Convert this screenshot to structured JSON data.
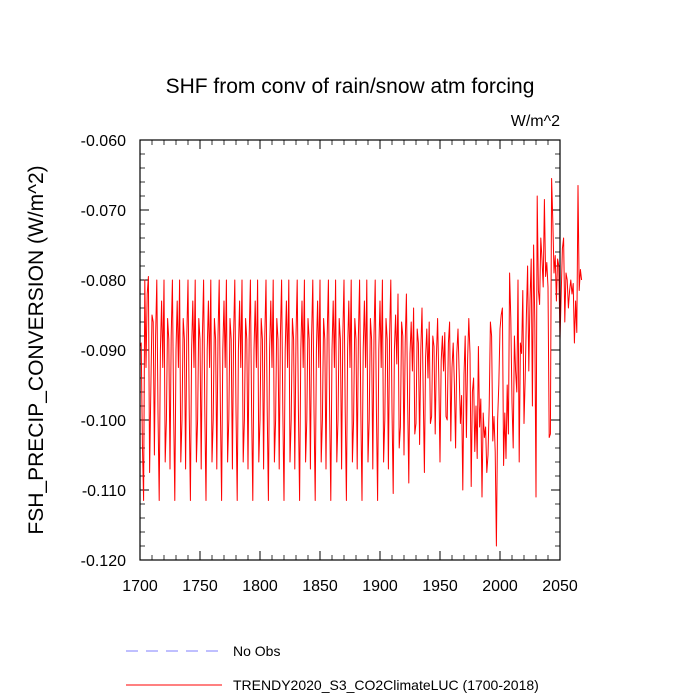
{
  "chart_data": {
    "type": "line",
    "title": "SHF from conv of rain/snow atm forcing",
    "units": "W/m^2",
    "xlabel": "",
    "ylabel": "FSH_PRECIP_CONVERSION  (W/m^2)",
    "xlim": [
      1700,
      2050
    ],
    "ylim": [
      -0.12,
      -0.06
    ],
    "xticks": [
      1700,
      1750,
      1800,
      1850,
      1900,
      1950,
      2000,
      2050
    ],
    "xtick_labels": [
      "1700",
      "1750",
      "1800",
      "1850",
      "1900",
      "1950",
      "2000",
      "2050"
    ],
    "yticks": [
      -0.06,
      -0.07,
      -0.08,
      -0.09,
      -0.1,
      -0.11,
      -0.12
    ],
    "ytick_labels": [
      "-0.060",
      "-0.070",
      "-0.080",
      "-0.090",
      "-0.100",
      "-0.110",
      "-0.120"
    ],
    "grid": false,
    "legend": [
      {
        "label": "No Obs",
        "color": "#7f7fff",
        "dash": "dashed"
      },
      {
        "label": "TRENDY2020_S3_CO2ClimateLUC (1700-2018)",
        "color": "#ff0000",
        "dash": "solid"
      }
    ],
    "series": [
      {
        "name": "TRENDY2020_S3_CO2ClimateLUC (1700-2018)",
        "color": "#ff0000",
        "x_start": 1700,
        "x_step": 1,
        "values": [
          -0.0895,
          -0.089,
          -0.1035,
          -0.1115,
          -0.08,
          -0.0925,
          -0.082,
          -0.0795,
          -0.1075,
          -0.096,
          -0.085,
          -0.086,
          -0.105,
          -0.088,
          -0.08,
          -0.099,
          -0.1115,
          -0.09,
          -0.083,
          -0.0925,
          -0.08,
          -0.106,
          -0.1,
          -0.0855,
          -0.0885,
          -0.107,
          -0.088,
          -0.08,
          -0.0985,
          -0.1115,
          -0.09,
          -0.083,
          -0.0925,
          -0.08,
          -0.106,
          -0.1,
          -0.0855,
          -0.0885,
          -0.107,
          -0.088,
          -0.08,
          -0.0985,
          -0.1115,
          -0.09,
          -0.083,
          -0.0925,
          -0.08,
          -0.106,
          -0.1,
          -0.0855,
          -0.0885,
          -0.107,
          -0.088,
          -0.08,
          -0.0985,
          -0.1115,
          -0.09,
          -0.083,
          -0.0925,
          -0.08,
          -0.106,
          -0.1,
          -0.0855,
          -0.0885,
          -0.107,
          -0.088,
          -0.08,
          -0.0985,
          -0.1115,
          -0.09,
          -0.083,
          -0.0925,
          -0.08,
          -0.106,
          -0.1,
          -0.0855,
          -0.0885,
          -0.107,
          -0.088,
          -0.08,
          -0.0985,
          -0.1115,
          -0.09,
          -0.083,
          -0.0925,
          -0.08,
          -0.106,
          -0.1,
          -0.0855,
          -0.0885,
          -0.107,
          -0.088,
          -0.08,
          -0.0985,
          -0.1115,
          -0.09,
          -0.083,
          -0.0925,
          -0.08,
          -0.106,
          -0.1,
          -0.0855,
          -0.0885,
          -0.107,
          -0.088,
          -0.08,
          -0.0985,
          -0.1115,
          -0.09,
          -0.083,
          -0.0925,
          -0.08,
          -0.106,
          -0.1,
          -0.0855,
          -0.0885,
          -0.107,
          -0.088,
          -0.08,
          -0.0985,
          -0.1115,
          -0.09,
          -0.083,
          -0.0925,
          -0.08,
          -0.106,
          -0.1,
          -0.0855,
          -0.0885,
          -0.107,
          -0.088,
          -0.08,
          -0.0985,
          -0.1115,
          -0.09,
          -0.083,
          -0.0925,
          -0.08,
          -0.106,
          -0.1,
          -0.0855,
          -0.0885,
          -0.107,
          -0.088,
          -0.08,
          -0.0985,
          -0.1115,
          -0.09,
          -0.083,
          -0.0925,
          -0.08,
          -0.106,
          -0.1,
          -0.0855,
          -0.0885,
          -0.107,
          -0.088,
          -0.08,
          -0.0985,
          -0.1115,
          -0.09,
          -0.083,
          -0.0925,
          -0.08,
          -0.106,
          -0.1,
          -0.0855,
          -0.0885,
          -0.107,
          -0.088,
          -0.08,
          -0.0985,
          -0.1115,
          -0.09,
          -0.083,
          -0.0925,
          -0.08,
          -0.106,
          -0.1,
          -0.0855,
          -0.0885,
          -0.107,
          -0.088,
          -0.08,
          -0.0985,
          -0.1115,
          -0.09,
          -0.083,
          -0.0925,
          -0.08,
          -0.106,
          -0.1,
          -0.0855,
          -0.0885,
          -0.107,
          -0.088,
          -0.08,
          -0.0985,
          -0.1115,
          -0.09,
          -0.083,
          -0.0925,
          -0.08,
          -0.106,
          -0.1,
          -0.0855,
          -0.0885,
          -0.107,
          -0.088,
          -0.08,
          -0.0985,
          -0.1105,
          -0.09,
          -0.085,
          -0.092,
          -0.082,
          -0.104,
          -0.101,
          -0.086,
          -0.088,
          -0.105,
          -0.089,
          -0.082,
          -0.097,
          -0.109,
          -0.0905,
          -0.086,
          -0.093,
          -0.084,
          -0.102,
          -0.1005,
          -0.087,
          -0.089,
          -0.1035,
          -0.09,
          -0.084,
          -0.096,
          -0.1075,
          -0.091,
          -0.087,
          -0.094,
          -0.086,
          -0.1005,
          -0.0995,
          -0.088,
          -0.0895,
          -0.102,
          -0.091,
          -0.0855,
          -0.094,
          -0.106,
          -0.0915,
          -0.088,
          -0.093,
          -0.0875,
          -0.0995,
          -0.1,
          -0.089,
          -0.086,
          -0.103,
          -0.0925,
          -0.089,
          -0.095,
          -0.104,
          -0.0905,
          -0.087,
          -0.0935,
          -0.1005,
          -0.0965,
          -0.11,
          -0.0935,
          -0.088,
          -0.1025,
          -0.0915,
          -0.0855,
          -0.0905,
          -0.1095,
          -0.096,
          -0.094,
          -0.1045,
          -0.098,
          -0.1055,
          -0.0895,
          -0.101,
          -0.097,
          -0.111,
          -0.099,
          -0.1025,
          -0.101,
          -0.1075,
          -0.105,
          -0.098,
          -0.086,
          -0.088,
          -0.103,
          -0.0995,
          -0.1045,
          -0.118,
          -0.1,
          -0.095,
          -0.087,
          -0.085,
          -0.084,
          -0.1065,
          -0.099,
          -0.1055,
          -0.095,
          -0.102,
          -0.079,
          -0.0855,
          -0.0975,
          -0.104,
          -0.088,
          -0.093,
          -0.096,
          -0.08,
          -0.106,
          -0.089,
          -0.0905,
          -0.0815,
          -0.1005,
          -0.094,
          -0.085,
          -0.078,
          -0.093,
          -0.083,
          -0.077,
          -0.098,
          -0.075,
          -0.086,
          -0.111,
          -0.068,
          -0.0815,
          -0.0835,
          -0.074,
          -0.077,
          -0.081,
          -0.0685,
          -0.0795,
          -0.0775,
          -0.081,
          -0.1025,
          -0.102,
          -0.0655,
          -0.0715,
          -0.079,
          -0.0765,
          -0.083,
          -0.077,
          -0.078,
          -0.0885,
          -0.082,
          -0.0755,
          -0.074,
          -0.086,
          -0.079,
          -0.08,
          -0.084,
          -0.0815,
          -0.08,
          -0.082,
          -0.0805,
          -0.089,
          -0.083,
          -0.0875,
          -0.0665,
          -0.0815,
          -0.0785,
          -0.08
        ]
      }
    ]
  }
}
